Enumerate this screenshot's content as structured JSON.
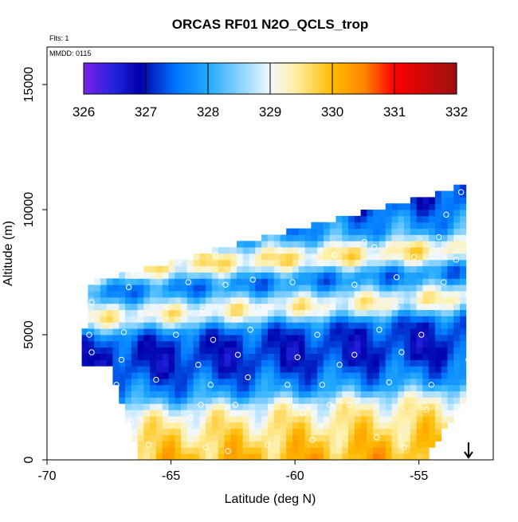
{
  "chart_data": {
    "type": "heatmap",
    "title": "ORCAS RF01 N2O_QCLS_trop",
    "annotations": [
      "Flts: 1",
      "MMDD: 0115"
    ],
    "xlabel": "Latitude (deg N)",
    "ylabel": "Altitude (m)",
    "xlim": [
      -70,
      -52
    ],
    "ylim": [
      0,
      16500
    ],
    "x_ticks": [
      -70,
      -65,
      -60,
      -55
    ],
    "x_tick_labels": [
      "-70",
      "-65",
      "-60",
      "-55"
    ],
    "y_ticks": [
      0,
      5000,
      10000,
      15000
    ],
    "y_tick_labels": [
      "0",
      "5000",
      "10000",
      "15000"
    ],
    "colorbar": {
      "min": 326,
      "max": 332,
      "ticks": [
        326,
        327,
        328,
        329,
        330,
        331,
        332
      ],
      "tick_labels": [
        "326",
        "327",
        "328",
        "329",
        "330",
        "331",
        "332"
      ],
      "placement": "top",
      "stops": [
        {
          "value": 326.0,
          "color": "#7a22e8"
        },
        {
          "value": 326.5,
          "color": "#2222dd"
        },
        {
          "value": 326.9,
          "color": "#0000aa"
        },
        {
          "value": 327.5,
          "color": "#0077ff"
        },
        {
          "value": 328.0,
          "color": "#22aaff"
        },
        {
          "value": 328.6,
          "color": "#99d9ff"
        },
        {
          "value": 329.0,
          "color": "#f2f8ff"
        },
        {
          "value": 329.4,
          "color": "#fff0a8"
        },
        {
          "value": 330.0,
          "color": "#ffbb00"
        },
        {
          "value": 330.5,
          "color": "#ff8800"
        },
        {
          "value": 331.0,
          "color": "#ff0000"
        },
        {
          "value": 332.0,
          "color": "#991111"
        }
      ]
    },
    "domain": {
      "lat_range": [
        -68.6,
        -53.1
      ],
      "alt_range": [
        0,
        11000
      ],
      "bottom_left_lat": -66.2,
      "top_left_lat": -68.6,
      "left_shoulder_alt": 3800,
      "top_left_alt": 7000,
      "top_right_alt": 11000,
      "right_top_lat": -53.0,
      "right_bottom_lat": -53.4,
      "lat_step": 0.25,
      "alt_step": 250
    },
    "bands": [
      {
        "alt": 300,
        "value": 330.1,
        "width": 700
      },
      {
        "alt": 1000,
        "value": 329.4,
        "width": 500
      },
      {
        "alt": 1900,
        "value": 329.2,
        "width": 450
      },
      {
        "alt": 3000,
        "value": 327.7,
        "width": 500
      },
      {
        "alt": 4000,
        "value": 327.0,
        "width": 500
      },
      {
        "alt": 5100,
        "value": 327.2,
        "width": 450
      },
      {
        "alt": 6100,
        "value": 329.6,
        "width": 450
      },
      {
        "alt": 7000,
        "value": 327.4,
        "width": 450
      },
      {
        "alt": 8000,
        "value": 329.7,
        "width": 400
      },
      {
        "alt": 9000,
        "value": 327.8,
        "width": 450
      },
      {
        "alt": 10200,
        "value": 327.2,
        "width": 500
      }
    ],
    "flight_track_points": [
      [
        -66.5,
        400
      ],
      [
        -65.9,
        600
      ],
      [
        -63.6,
        500
      ],
      [
        -62.7,
        350
      ],
      [
        -61.1,
        600
      ],
      [
        -59.3,
        800
      ],
      [
        -56.7,
        900
      ],
      [
        -55.6,
        500
      ],
      [
        -53.6,
        200
      ],
      [
        -66.6,
        1500
      ],
      [
        -64.2,
        1700
      ],
      [
        -63.8,
        2200
      ],
      [
        -62.4,
        2200
      ],
      [
        -59.7,
        1900
      ],
      [
        -58.6,
        2200
      ],
      [
        -57.8,
        2200
      ],
      [
        -54.7,
        2000
      ],
      [
        -67.2,
        3000
      ],
      [
        -65.6,
        3200
      ],
      [
        -63.4,
        3000
      ],
      [
        -61.9,
        3300
      ],
      [
        -60.3,
        3000
      ],
      [
        -58.9,
        3000
      ],
      [
        -56.2,
        3100
      ],
      [
        -54.5,
        3000
      ],
      [
        -68.2,
        4300
      ],
      [
        -67.0,
        4000
      ],
      [
        -63.9,
        3800
      ],
      [
        -62.3,
        4200
      ],
      [
        -59.9,
        4100
      ],
      [
        -58.2,
        3800
      ],
      [
        -57.6,
        4200
      ],
      [
        -55.7,
        4300
      ],
      [
        -53.0,
        4000
      ],
      [
        -68.3,
        5000
      ],
      [
        -66.9,
        5100
      ],
      [
        -64.8,
        5000
      ],
      [
        -63.3,
        4800
      ],
      [
        -61.8,
        5200
      ],
      [
        -59.1,
        5000
      ],
      [
        -56.6,
        5200
      ],
      [
        -54.9,
        5000
      ],
      [
        -68.2,
        6300
      ],
      [
        -65.1,
        6100
      ],
      [
        -63.7,
        6000
      ],
      [
        -61.4,
        6100
      ],
      [
        -58.8,
        6000
      ],
      [
        -55.9,
        6100
      ],
      [
        -54.3,
        6100
      ],
      [
        -53.0,
        6600
      ],
      [
        -66.7,
        6900
      ],
      [
        -64.3,
        7100
      ],
      [
        -62.8,
        7000
      ],
      [
        -61.7,
        7200
      ],
      [
        -60.1,
        7100
      ],
      [
        -57.6,
        7000
      ],
      [
        -55.9,
        7300
      ],
      [
        -54.0,
        7100
      ],
      [
        -64.6,
        8000
      ],
      [
        -63.2,
        8200
      ],
      [
        -60.6,
        8400
      ],
      [
        -58.4,
        8200
      ],
      [
        -56.8,
        8500
      ],
      [
        -55.2,
        8100
      ],
      [
        -53.5,
        8000
      ],
      [
        -57.2,
        8700
      ],
      [
        -54.2,
        8900
      ],
      [
        -53.9,
        9800
      ],
      [
        -53.3,
        10700
      ]
    ],
    "marker": {
      "type": "arrow-down",
      "lat": -53.0,
      "alt": 700
    }
  }
}
